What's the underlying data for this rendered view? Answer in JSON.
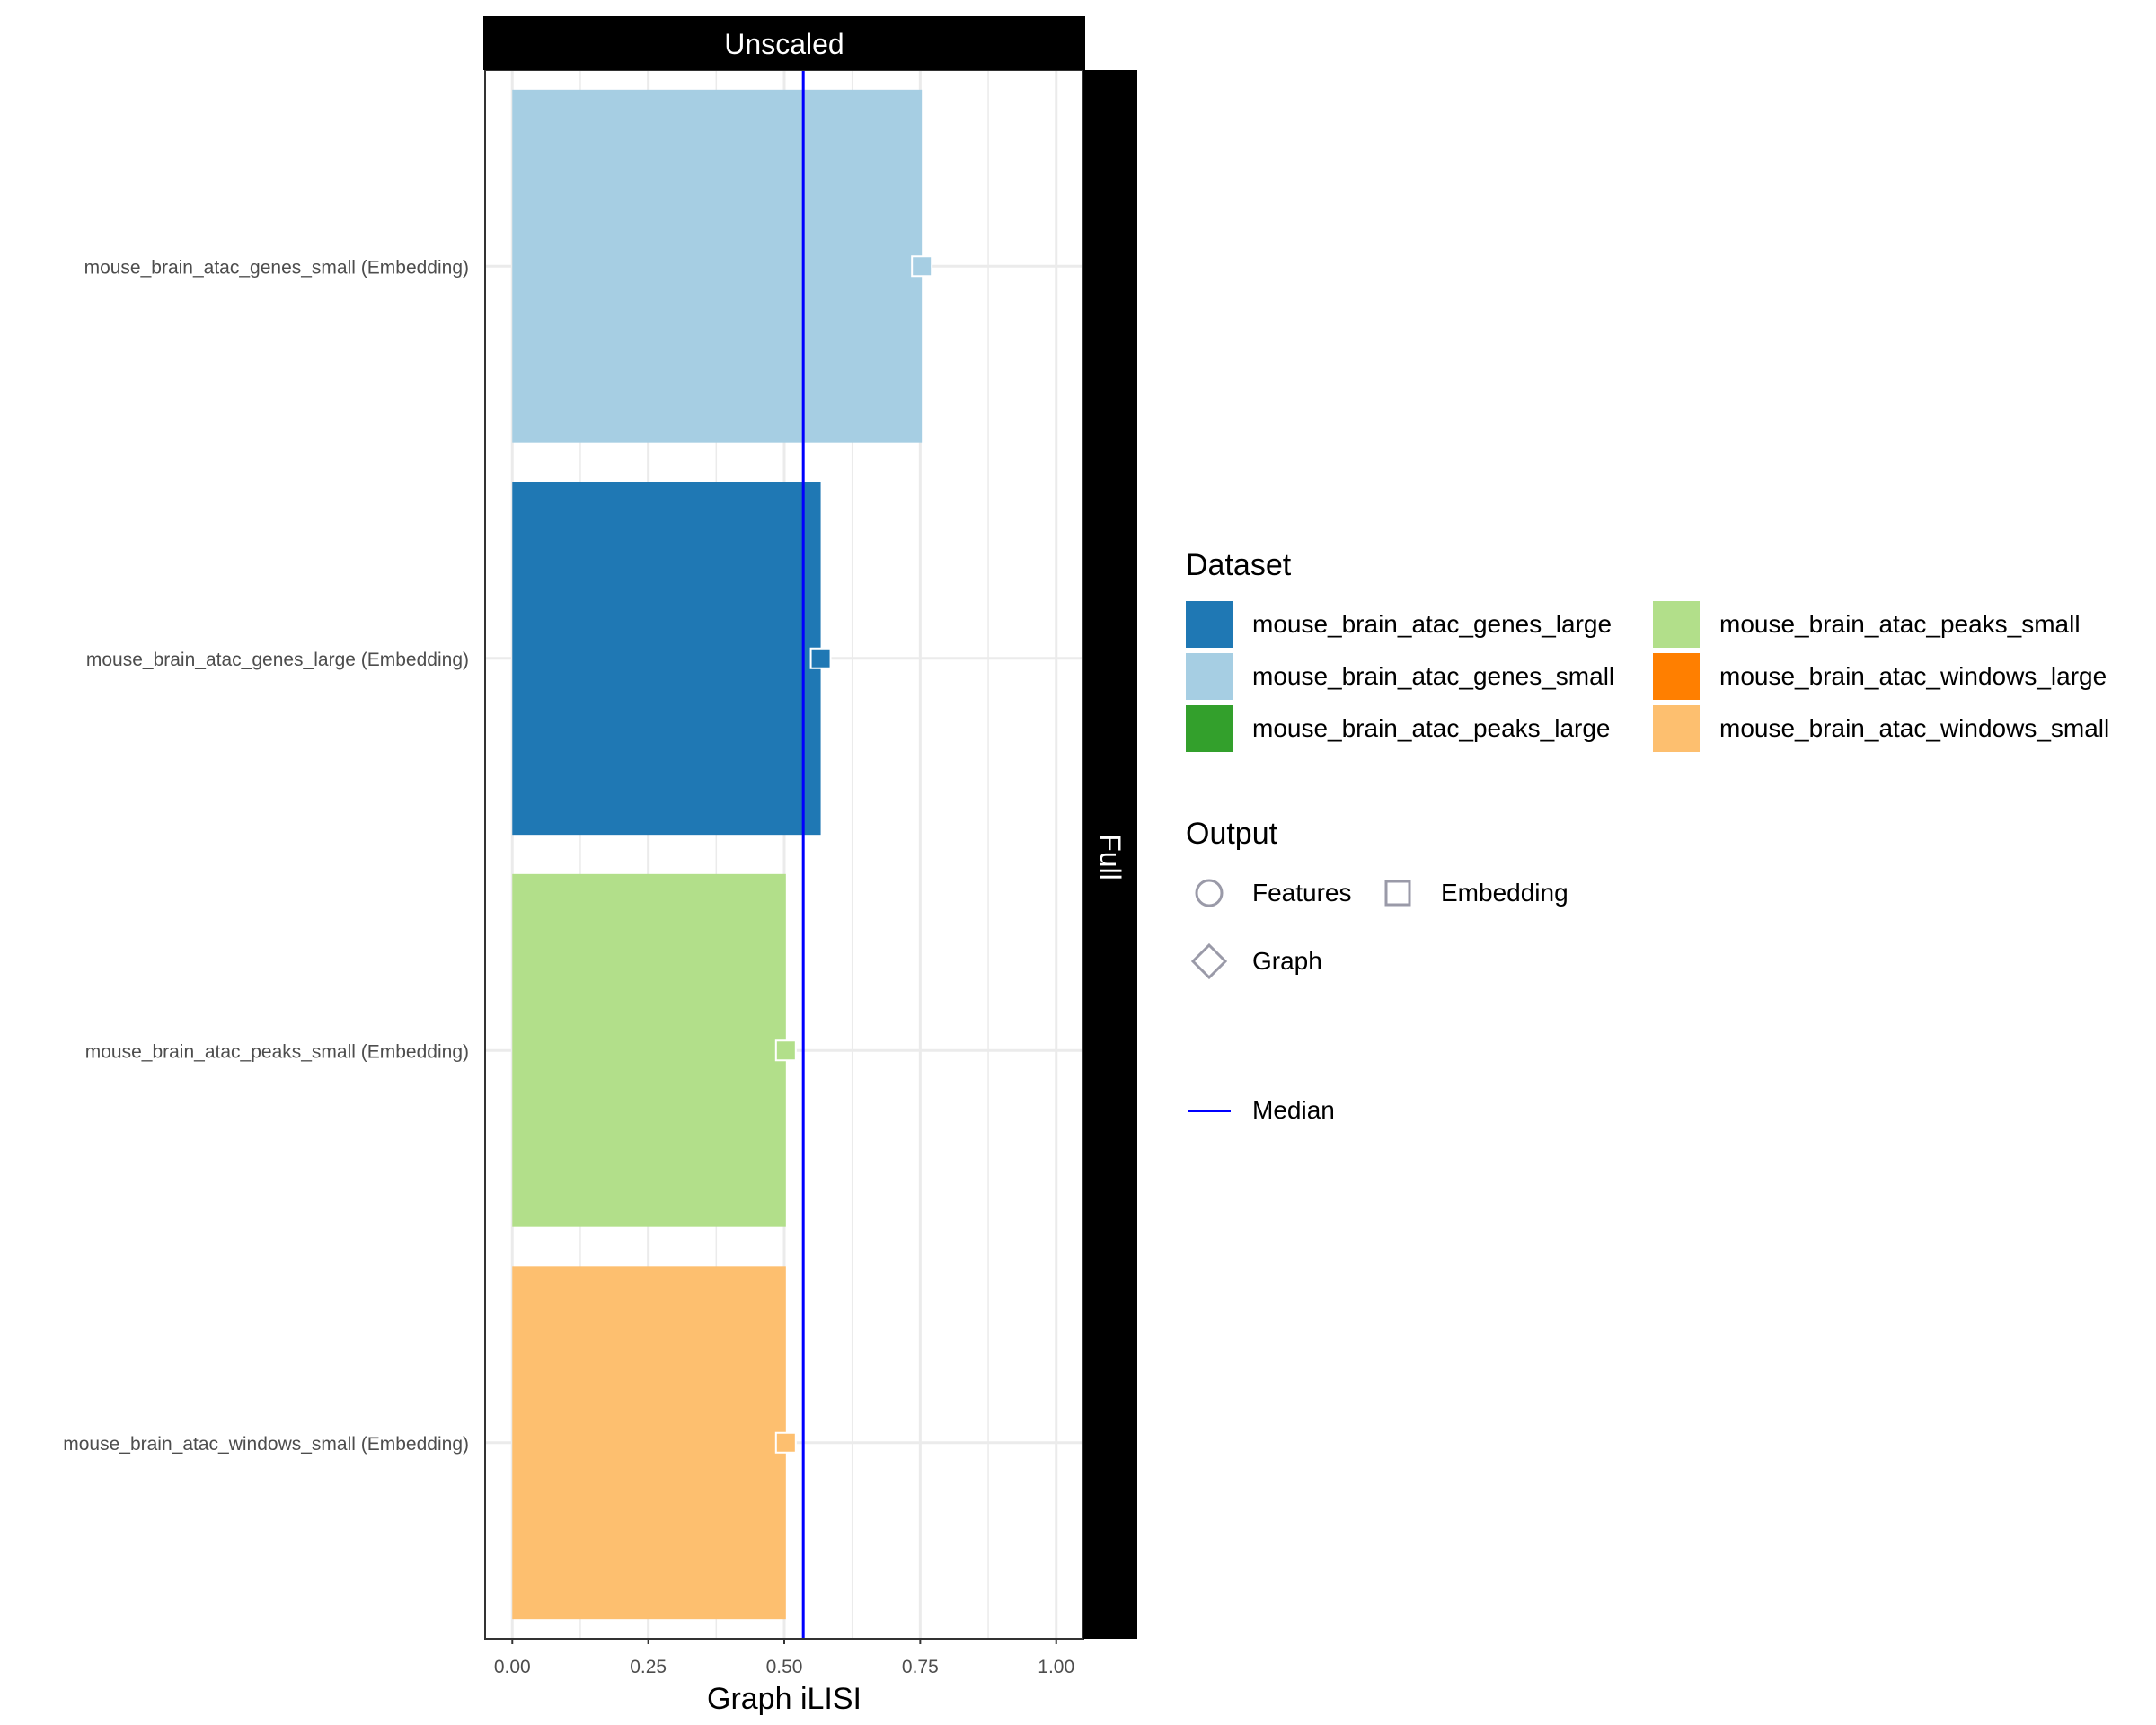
{
  "chart_data": {
    "type": "bar",
    "facet_top": "Unscaled",
    "facet_right": "Full",
    "xlabel": "Graph iLISI",
    "xlim": [
      -0.05,
      1.05
    ],
    "x_ticks": [
      0,
      0.25,
      0.5,
      0.75,
      1.0
    ],
    "x_tick_labels": [
      "0.00",
      "0.25",
      "0.50",
      "0.75",
      "1.00"
    ],
    "median": 0.535,
    "grid": true,
    "legend_position": "right",
    "categories": [
      "mouse_brain_atac_genes_small (Embedding)",
      "mouse_brain_atac_genes_large (Embedding)",
      "mouse_brain_atac_peaks_small (Embedding)",
      "mouse_brain_atac_windows_small (Embedding)"
    ],
    "values": [
      0.753,
      0.567,
      0.503,
      0.503
    ],
    "datasets": [
      "mouse_brain_atac_genes_small",
      "mouse_brain_atac_genes_large",
      "mouse_brain_atac_peaks_small",
      "mouse_brain_atac_windows_small"
    ],
    "outputs": [
      "Embedding",
      "Embedding",
      "Embedding",
      "Embedding"
    ]
  },
  "colors": {
    "mouse_brain_atac_genes_large": "#1f78b4",
    "mouse_brain_atac_genes_small": "#a6cee3",
    "mouse_brain_atac_peaks_large": "#33a02c",
    "mouse_brain_atac_peaks_small": "#b2df8a",
    "mouse_brain_atac_windows_large": "#ff7f00",
    "mouse_brain_atac_windows_small": "#fdbf6f",
    "median_line": "#0000ff",
    "grid": "#ebebeb",
    "shape_stroke": "#9a9aa8"
  },
  "legend": {
    "dataset_title": "Dataset",
    "datasets": [
      "mouse_brain_atac_genes_large",
      "mouse_brain_atac_peaks_small",
      "mouse_brain_atac_genes_small",
      "mouse_brain_atac_windows_large",
      "mouse_brain_atac_peaks_large",
      "mouse_brain_atac_windows_small"
    ],
    "output_title": "Output",
    "outputs": [
      {
        "label": "Features",
        "shape": "circle"
      },
      {
        "label": "Embedding",
        "shape": "square"
      },
      {
        "label": "Graph",
        "shape": "diamond"
      }
    ],
    "median_label": "Median"
  }
}
